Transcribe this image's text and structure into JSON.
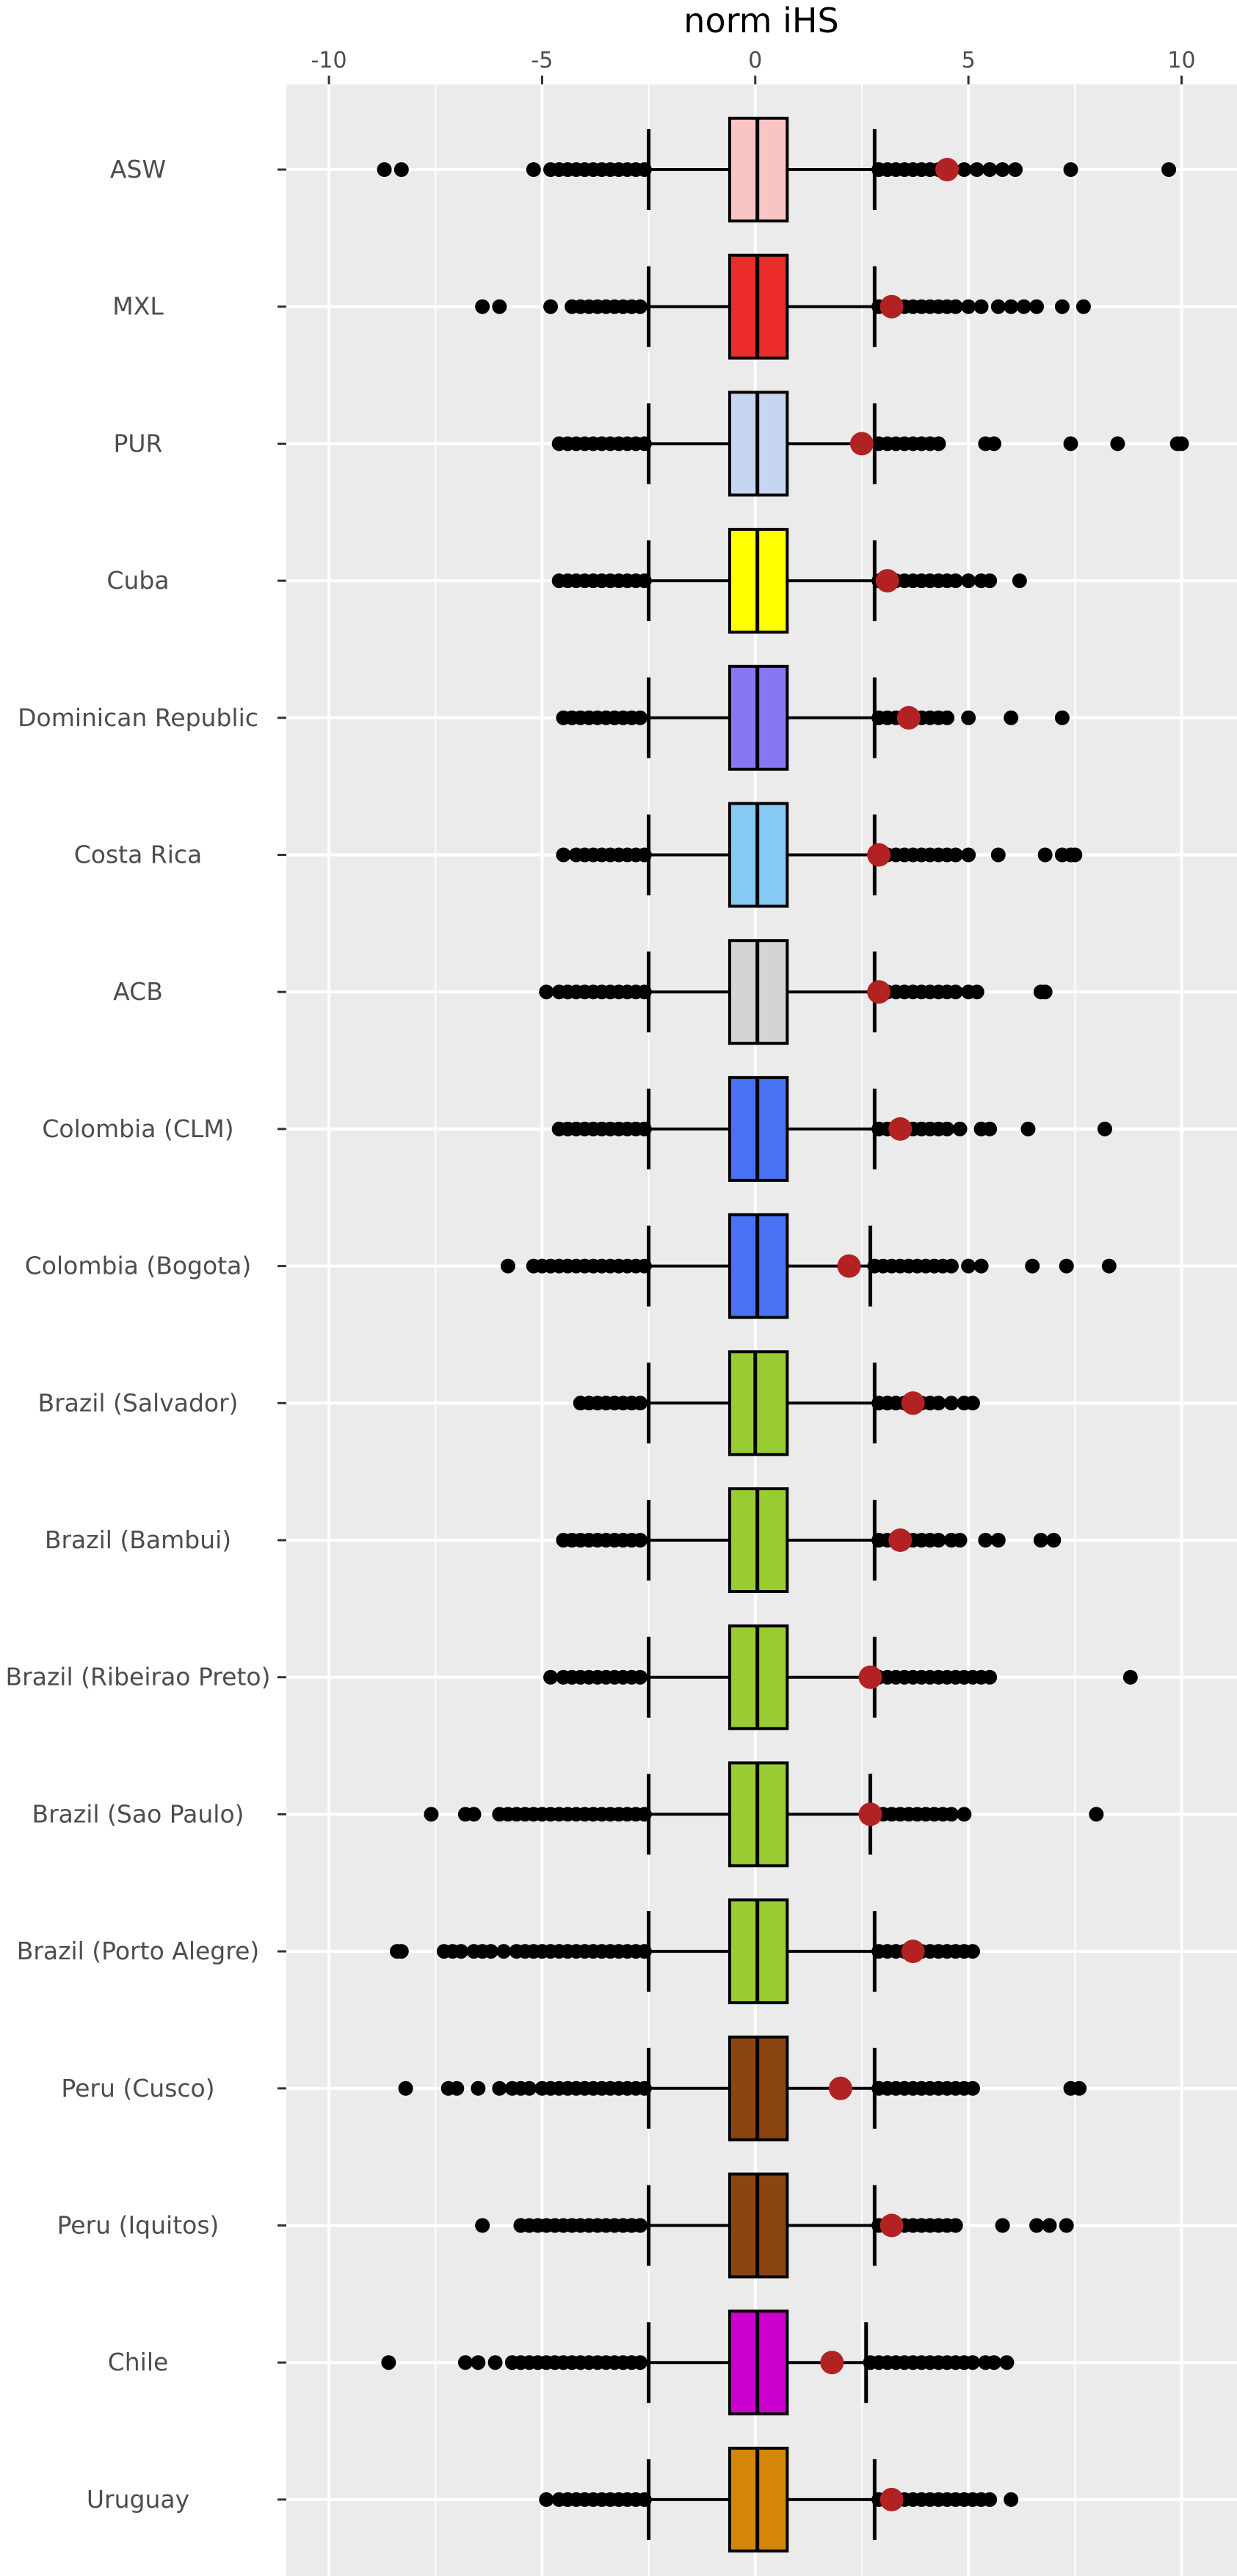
{
  "chart_data": {
    "type": "boxplot",
    "title": "norm iHS",
    "xlabel": "",
    "ylabel": "",
    "xlim": [
      -11,
      11.3
    ],
    "x_ticks": [
      -10,
      -5,
      0,
      5,
      10
    ],
    "x_tick_labels": [
      "-10",
      "-5",
      "0",
      "5",
      "10"
    ],
    "grid": true,
    "legend": "none",
    "groups": [
      {
        "name": "ASW",
        "color": "#f8c4c4",
        "q1": -0.6,
        "median": 0.05,
        "q3": 0.75,
        "whisker_low": -2.5,
        "whisker_high": 2.8,
        "outliers_low": [
          -8.7,
          -8.3,
          -5.2,
          -4.8,
          -4.6,
          -4.4,
          -4.2,
          -4.0,
          -3.8,
          -3.6,
          -3.4,
          -3.2,
          -3.0,
          -2.8,
          -2.6
        ],
        "outliers_high": [
          2.9,
          3.1,
          3.3,
          3.5,
          3.7,
          3.9,
          4.1,
          4.3,
          4.6,
          4.9,
          5.2,
          5.5,
          5.8,
          6.1,
          7.4,
          9.7
        ],
        "highlight": 4.5
      },
      {
        "name": "MXL",
        "color": "#ec2b2b",
        "q1": -0.6,
        "median": 0.05,
        "q3": 0.75,
        "whisker_low": -2.5,
        "whisker_high": 2.8,
        "outliers_low": [
          -6.4,
          -6.0,
          -4.8,
          -4.3,
          -4.1,
          -3.9,
          -3.7,
          -3.5,
          -3.3,
          -3.1,
          -2.9,
          -2.7
        ],
        "outliers_high": [
          2.9,
          3.1,
          3.3,
          3.5,
          3.7,
          3.9,
          4.1,
          4.3,
          4.5,
          4.7,
          5.0,
          5.3,
          5.7,
          6.0,
          6.3,
          6.6,
          7.2,
          7.7
        ],
        "highlight": 3.2
      },
      {
        "name": "PUR",
        "color": "#c7d6f0",
        "q1": -0.6,
        "median": 0.05,
        "q3": 0.75,
        "whisker_low": -2.5,
        "whisker_high": 2.8,
        "outliers_low": [
          -4.6,
          -4.4,
          -4.2,
          -4.0,
          -3.8,
          -3.6,
          -3.4,
          -3.2,
          -3.0,
          -2.8,
          -2.6
        ],
        "outliers_high": [
          2.9,
          3.1,
          3.3,
          3.5,
          3.7,
          3.9,
          4.1,
          4.3,
          5.4,
          5.6,
          7.4,
          8.5,
          9.9,
          10.0
        ],
        "highlight": 2.5
      },
      {
        "name": "Cuba",
        "color": "#ffff00",
        "q1": -0.6,
        "median": 0.05,
        "q3": 0.75,
        "whisker_low": -2.5,
        "whisker_high": 2.8,
        "outliers_low": [
          -4.6,
          -4.4,
          -4.2,
          -4.0,
          -3.8,
          -3.6,
          -3.4,
          -3.2,
          -3.0,
          -2.8,
          -2.6
        ],
        "outliers_high": [
          2.9,
          3.1,
          3.3,
          3.5,
          3.7,
          3.9,
          4.1,
          4.3,
          4.5,
          4.7,
          5.0,
          5.3,
          5.5,
          6.2
        ],
        "highlight": 3.1
      },
      {
        "name": "Dominican Republic",
        "color": "#8877f5",
        "q1": -0.6,
        "median": 0.05,
        "q3": 0.75,
        "whisker_low": -2.5,
        "whisker_high": 2.8,
        "outliers_low": [
          -4.5,
          -4.3,
          -4.1,
          -3.9,
          -3.7,
          -3.5,
          -3.3,
          -3.1,
          -2.9,
          -2.7
        ],
        "outliers_high": [
          2.9,
          3.1,
          3.3,
          3.5,
          3.7,
          3.9,
          4.1,
          4.3,
          4.5,
          5.0,
          6.0,
          7.2
        ],
        "highlight": 3.6
      },
      {
        "name": "Costa Rica",
        "color": "#86c9f4",
        "q1": -0.6,
        "median": 0.05,
        "q3": 0.75,
        "whisker_low": -2.5,
        "whisker_high": 2.8,
        "outliers_low": [
          -4.5,
          -4.2,
          -4.0,
          -3.8,
          -3.6,
          -3.4,
          -3.2,
          -3.0,
          -2.8,
          -2.6
        ],
        "outliers_high": [
          2.9,
          3.1,
          3.3,
          3.5,
          3.7,
          3.9,
          4.1,
          4.3,
          4.5,
          4.7,
          5.0,
          5.7,
          6.8,
          7.2,
          7.4,
          7.5
        ],
        "highlight": 2.9
      },
      {
        "name": "ACB",
        "color": "#d4d4d4",
        "q1": -0.6,
        "median": 0.05,
        "q3": 0.75,
        "whisker_low": -2.5,
        "whisker_high": 2.8,
        "outliers_low": [
          -4.9,
          -4.6,
          -4.4,
          -4.2,
          -4.0,
          -3.8,
          -3.6,
          -3.4,
          -3.2,
          -3.0,
          -2.8,
          -2.6
        ],
        "outliers_high": [
          2.9,
          3.1,
          3.3,
          3.5,
          3.7,
          3.9,
          4.1,
          4.3,
          4.5,
          4.7,
          5.0,
          5.2,
          6.7,
          6.8
        ],
        "highlight": 2.9
      },
      {
        "name": "Colombia (CLM)",
        "color": "#4a72f5",
        "q1": -0.6,
        "median": 0.05,
        "q3": 0.75,
        "whisker_low": -2.5,
        "whisker_high": 2.8,
        "outliers_low": [
          -4.6,
          -4.4,
          -4.2,
          -4.0,
          -3.8,
          -3.6,
          -3.4,
          -3.2,
          -3.0,
          -2.8,
          -2.6
        ],
        "outliers_high": [
          2.9,
          3.1,
          3.3,
          3.5,
          3.7,
          3.9,
          4.1,
          4.3,
          4.5,
          4.8,
          5.3,
          5.5,
          6.4,
          8.2
        ],
        "highlight": 3.4
      },
      {
        "name": "Colombia (Bogota)",
        "color": "#4a72f5",
        "q1": -0.6,
        "median": 0.05,
        "q3": 0.75,
        "whisker_low": -2.5,
        "whisker_high": 2.7,
        "outliers_low": [
          -5.8,
          -5.2,
          -5.0,
          -4.8,
          -4.6,
          -4.4,
          -4.2,
          -4.0,
          -3.8,
          -3.6,
          -3.4,
          -3.2,
          -3.0,
          -2.8,
          -2.6
        ],
        "outliers_high": [
          2.8,
          3.0,
          3.2,
          3.4,
          3.6,
          3.8,
          4.0,
          4.2,
          4.4,
          4.6,
          5.0,
          5.3,
          6.5,
          7.3,
          8.3
        ],
        "highlight": 2.2
      },
      {
        "name": "Brazil (Salvador)",
        "color": "#99cc33",
        "q1": -0.6,
        "median": 0.0,
        "q3": 0.75,
        "whisker_low": -2.5,
        "whisker_high": 2.8,
        "outliers_low": [
          -4.1,
          -3.9,
          -3.7,
          -3.5,
          -3.3,
          -3.1,
          -2.9,
          -2.7
        ],
        "outliers_high": [
          2.9,
          3.1,
          3.3,
          3.5,
          3.7,
          3.9,
          4.1,
          4.3,
          4.6,
          4.9,
          5.1
        ],
        "highlight": 3.7
      },
      {
        "name": "Brazil (Bambui)",
        "color": "#99cc33",
        "q1": -0.6,
        "median": 0.05,
        "q3": 0.75,
        "whisker_low": -2.5,
        "whisker_high": 2.8,
        "outliers_low": [
          -4.5,
          -4.3,
          -4.1,
          -3.9,
          -3.7,
          -3.5,
          -3.3,
          -3.1,
          -2.9,
          -2.7
        ],
        "outliers_high": [
          2.9,
          3.1,
          3.3,
          3.5,
          3.7,
          3.9,
          4.1,
          4.3,
          4.6,
          4.8,
          5.4,
          5.7,
          6.7,
          7.0
        ],
        "highlight": 3.4
      },
      {
        "name": "Brazil (Ribeirao Preto)",
        "color": "#99cc33",
        "q1": -0.6,
        "median": 0.05,
        "q3": 0.75,
        "whisker_low": -2.5,
        "whisker_high": 2.8,
        "outliers_low": [
          -4.8,
          -4.5,
          -4.3,
          -4.1,
          -3.9,
          -3.7,
          -3.5,
          -3.3,
          -3.1,
          -2.9,
          -2.7
        ],
        "outliers_high": [
          2.9,
          3.1,
          3.3,
          3.5,
          3.7,
          3.9,
          4.1,
          4.3,
          4.5,
          4.7,
          4.9,
          5.1,
          5.3,
          5.5,
          8.8
        ],
        "highlight": 2.7
      },
      {
        "name": "Brazil (Sao Paulo)",
        "color": "#99cc33",
        "q1": -0.6,
        "median": 0.05,
        "q3": 0.75,
        "whisker_low": -2.5,
        "whisker_high": 2.7,
        "outliers_low": [
          -7.6,
          -6.8,
          -6.6,
          -6.0,
          -5.8,
          -5.6,
          -5.4,
          -5.2,
          -5.0,
          -4.8,
          -4.6,
          -4.4,
          -4.2,
          -4.0,
          -3.8,
          -3.6,
          -3.4,
          -3.2,
          -3.0,
          -2.8,
          -2.6
        ],
        "outliers_high": [
          2.8,
          3.0,
          3.2,
          3.4,
          3.6,
          3.8,
          4.0,
          4.2,
          4.4,
          4.6,
          4.9,
          8.0
        ],
        "highlight": 2.7
      },
      {
        "name": "Brazil (Porto Alegre)",
        "color": "#99cc33",
        "q1": -0.6,
        "median": 0.05,
        "q3": 0.75,
        "whisker_low": -2.5,
        "whisker_high": 2.8,
        "outliers_low": [
          -8.4,
          -8.3,
          -7.3,
          -7.1,
          -6.9,
          -6.6,
          -6.4,
          -6.2,
          -5.9,
          -5.6,
          -5.4,
          -5.2,
          -5.0,
          -4.8,
          -4.6,
          -4.4,
          -4.2,
          -4.0,
          -3.8,
          -3.6,
          -3.4,
          -3.2,
          -3.0,
          -2.8,
          -2.6
        ],
        "outliers_high": [
          2.9,
          3.1,
          3.3,
          3.5,
          3.7,
          3.9,
          4.1,
          4.3,
          4.5,
          4.7,
          4.9,
          5.1
        ],
        "highlight": 3.7
      },
      {
        "name": "Peru (Cusco)",
        "color": "#8b4513",
        "q1": -0.6,
        "median": 0.05,
        "q3": 0.75,
        "whisker_low": -2.5,
        "whisker_high": 2.8,
        "outliers_low": [
          -8.2,
          -7.2,
          -7.0,
          -6.5,
          -6.0,
          -5.7,
          -5.5,
          -5.3,
          -5.0,
          -4.8,
          -4.6,
          -4.4,
          -4.2,
          -4.0,
          -3.8,
          -3.6,
          -3.4,
          -3.2,
          -3.0,
          -2.8,
          -2.6
        ],
        "outliers_high": [
          2.9,
          3.1,
          3.3,
          3.5,
          3.7,
          3.9,
          4.1,
          4.3,
          4.5,
          4.7,
          4.9,
          5.1,
          7.4,
          7.6
        ],
        "highlight": 2.0
      },
      {
        "name": "Peru (Iquitos)",
        "color": "#8b4513",
        "q1": -0.6,
        "median": 0.05,
        "q3": 0.75,
        "whisker_low": -2.5,
        "whisker_high": 2.8,
        "outliers_low": [
          -6.4,
          -5.5,
          -5.3,
          -5.1,
          -4.9,
          -4.7,
          -4.5,
          -4.3,
          -4.1,
          -3.9,
          -3.7,
          -3.5,
          -3.3,
          -3.1,
          -2.9,
          -2.7
        ],
        "outliers_high": [
          2.9,
          3.1,
          3.3,
          3.5,
          3.7,
          3.9,
          4.1,
          4.3,
          4.5,
          4.7,
          5.8,
          6.6,
          6.9,
          7.3
        ],
        "highlight": 3.2
      },
      {
        "name": "Chile",
        "color": "#cc00cc",
        "q1": -0.6,
        "median": 0.05,
        "q3": 0.75,
        "whisker_low": -2.5,
        "whisker_high": 2.6,
        "outliers_low": [
          -8.6,
          -6.8,
          -6.5,
          -6.1,
          -5.7,
          -5.5,
          -5.3,
          -5.1,
          -4.9,
          -4.7,
          -4.5,
          -4.3,
          -4.1,
          -3.9,
          -3.7,
          -3.5,
          -3.3,
          -3.1,
          -2.9,
          -2.7
        ],
        "outliers_high": [
          2.7,
          2.9,
          3.1,
          3.3,
          3.5,
          3.7,
          3.9,
          4.1,
          4.3,
          4.5,
          4.7,
          4.9,
          5.1,
          5.4,
          5.6,
          5.9
        ],
        "highlight": 1.8
      },
      {
        "name": "Uruguay",
        "color": "#d4860b",
        "q1": -0.6,
        "median": 0.05,
        "q3": 0.75,
        "whisker_low": -2.5,
        "whisker_high": 2.8,
        "outliers_low": [
          -4.9,
          -4.6,
          -4.4,
          -4.2,
          -4.0,
          -3.8,
          -3.6,
          -3.4,
          -3.2,
          -3.0,
          -2.8,
          -2.6
        ],
        "outliers_high": [
          2.9,
          3.1,
          3.3,
          3.5,
          3.7,
          3.9,
          4.1,
          4.3,
          4.5,
          4.7,
          4.9,
          5.1,
          5.3,
          5.5,
          6.0
        ],
        "highlight": 3.2
      }
    ],
    "outlier_color": "#000000",
    "highlight_color": "#b22222",
    "panel_color": "#ebebeb",
    "grid_color": "#ffffff"
  }
}
